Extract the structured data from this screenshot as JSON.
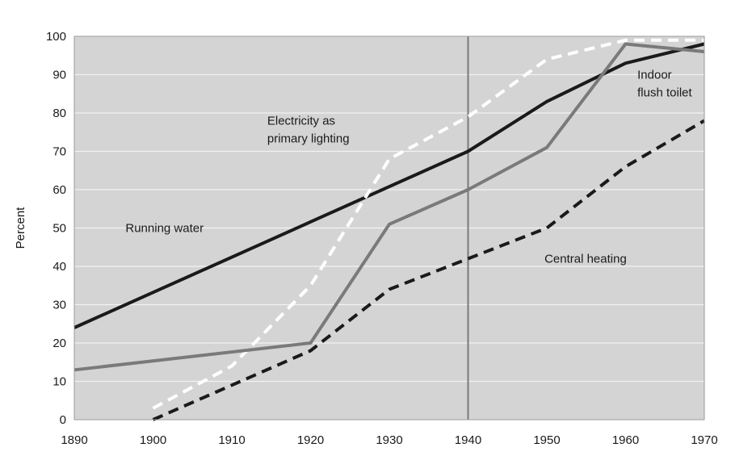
{
  "chart_data": {
    "type": "line",
    "title": "",
    "xlabel": "",
    "ylabel": "Percent",
    "xlim": [
      1890,
      1970
    ],
    "ylim": [
      0,
      100
    ],
    "x_ticks": [
      1890,
      1900,
      1910,
      1920,
      1930,
      1940,
      1950,
      1960,
      1970
    ],
    "y_ticks": [
      0,
      10,
      20,
      30,
      40,
      50,
      60,
      70,
      80,
      90,
      100
    ],
    "grid": "horizontal",
    "reference_line_x": 1940,
    "legend": "none",
    "background_color": "#d4d4d4",
    "series": [
      {
        "name": "Running water",
        "color": "#1a1a1a",
        "style": "solid",
        "points": [
          [
            1890,
            24
          ],
          [
            1940,
            70
          ],
          [
            1950,
            83
          ],
          [
            1960,
            93
          ],
          [
            1970,
            98
          ]
        ]
      },
      {
        "name": "Electricity as primary lighting",
        "color": "#ffffff",
        "style": "dashed",
        "points": [
          [
            1900,
            3
          ],
          [
            1910,
            14
          ],
          [
            1920,
            35
          ],
          [
            1930,
            68
          ],
          [
            1940,
            79
          ],
          [
            1950,
            94
          ],
          [
            1960,
            99
          ],
          [
            1970,
            99
          ]
        ]
      },
      {
        "name": "Indoor flush toilet",
        "color": "#7a7a7a",
        "style": "solid",
        "points": [
          [
            1890,
            13
          ],
          [
            1920,
            20
          ],
          [
            1930,
            51
          ],
          [
            1940,
            60
          ],
          [
            1950,
            71
          ],
          [
            1960,
            98
          ],
          [
            1970,
            96
          ]
        ]
      },
      {
        "name": "Central heating",
        "color": "#1a1a1a",
        "style": "dashed",
        "points": [
          [
            1900,
            0
          ],
          [
            1920,
            18
          ],
          [
            1930,
            34
          ],
          [
            1940,
            42
          ],
          [
            1950,
            50
          ],
          [
            1960,
            66
          ],
          [
            1970,
            78
          ]
        ]
      }
    ],
    "annotations": [
      {
        "series": 0,
        "lines": [
          "Running water"
        ],
        "x": 1896.5,
        "y": 49,
        "anchor": "start"
      },
      {
        "series": 1,
        "lines": [
          "Electricity as",
          "primary lighting"
        ],
        "x": 1914.5,
        "y": 77,
        "anchor": "start"
      },
      {
        "series": 2,
        "lines": [
          "Indoor",
          "flush toilet"
        ],
        "x": 1961.5,
        "y": 89,
        "anchor": "start"
      },
      {
        "series": 3,
        "lines": [
          "Central heating"
        ],
        "x": 1949.7,
        "y": 41,
        "anchor": "start"
      }
    ]
  }
}
